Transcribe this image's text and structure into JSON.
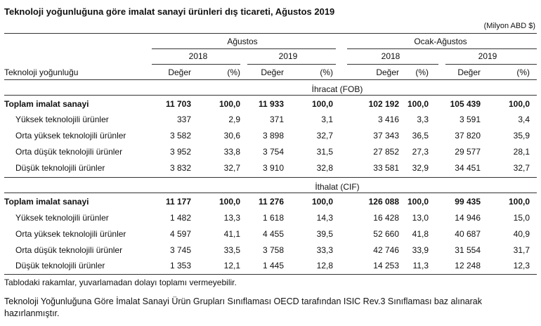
{
  "title": "Teknoloji yoğunluğuna göre imalat sanayi ürünleri dış ticareti, Ağustos 2019",
  "unit": "(Milyon ABD $)",
  "header": {
    "groups": [
      "Ağustos",
      "Ocak-Ağustos"
    ],
    "years": [
      "2018",
      "2019",
      "2018",
      "2019"
    ],
    "row_label": "Teknoloji yoğunluğu",
    "columns": [
      "Değer",
      "(%)",
      "Değer",
      "(%)",
      "Değer",
      "(%)",
      "Değer",
      "(%)"
    ]
  },
  "sections": [
    {
      "label": "İhracat (FOB)",
      "rows": [
        [
          "Toplam imalat sanayi",
          "11 703",
          "100,0",
          "11 933",
          "100,0",
          "102 192",
          "100,0",
          "105 439",
          "100,0"
        ],
        [
          "Yüksek teknolojili ürünler",
          "337",
          "2,9",
          "371",
          "3,1",
          "3 416",
          "3,3",
          "3 591",
          "3,4"
        ],
        [
          "Orta yüksek teknolojili ürünler",
          "3 582",
          "30,6",
          "3 898",
          "32,7",
          "37 343",
          "36,5",
          "37 820",
          "35,9"
        ],
        [
          "Orta düşük teknolojili ürünler",
          "3 952",
          "33,8",
          "3 754",
          "31,5",
          "27 852",
          "27,3",
          "29 577",
          "28,1"
        ],
        [
          "Düşük teknolojili ürünler",
          "3 832",
          "32,7",
          "3 910",
          "32,8",
          "33 581",
          "32,9",
          "34 451",
          "32,7"
        ]
      ]
    },
    {
      "label": "İthalat (CIF)",
      "rows": [
        [
          "Toplam imalat sanayi",
          "11 177",
          "100,0",
          "11 276",
          "100,0",
          "126 088",
          "100,0",
          "99 435",
          "100,0"
        ],
        [
          "Yüksek teknolojili ürünler",
          "1 482",
          "13,3",
          "1 618",
          "14,3",
          "16 428",
          "13,0",
          "14 946",
          "15,0"
        ],
        [
          "Orta yüksek teknolojili ürünler",
          "4 597",
          "41,1",
          "4 455",
          "39,5",
          "52 660",
          "41,8",
          "40 687",
          "40,9"
        ],
        [
          "Orta düşük teknolojili ürünler",
          "3 745",
          "33,5",
          "3 758",
          "33,3",
          "42 746",
          "33,9",
          "31 554",
          "31,7"
        ],
        [
          "Düşük teknolojili ürünler",
          "1 353",
          "12,1",
          "1 445",
          "12,8",
          "14 253",
          "11,3",
          "12 248",
          "12,3"
        ]
      ]
    }
  ],
  "notes": [
    "Tablodaki rakamlar, yuvarlamadan dolayı toplamı vermeyebilir.",
    "Teknoloji Yoğunluğuna Göre İmalat Sanayi Ürün Grupları Sınıflaması OECD tarafından ISIC Rev.3 Sınıflaması baz alınarak hazırlanmıştır."
  ]
}
